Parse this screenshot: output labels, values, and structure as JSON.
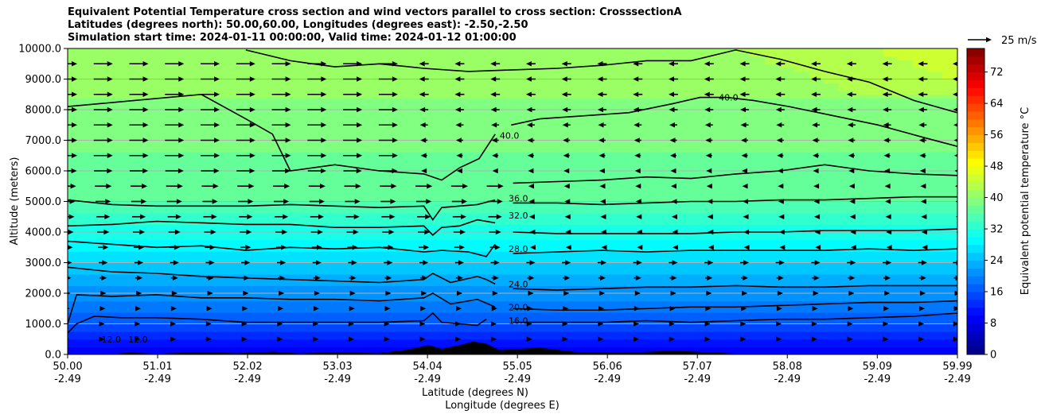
{
  "title": {
    "line1": "Equivalent Potential Temperature cross section and wind vectors parallel to cross section: CrosssectionA",
    "line2": "Latitudes (degrees north): 50.00,60.00, Longitudes (degrees east): -2.50,-2.50",
    "line3": "Simulation start time: 2024-01-11 00:00:00, Valid time: 2024-01-12 01:00:00"
  },
  "quiver_key": "25 m/s",
  "chart_data": {
    "type": "heatmap",
    "xlabel": "Latitude (degrees N)",
    "xlabel2": "Longitude (degrees E)",
    "ylabel": "Altitude (meters)",
    "colorbar_label": "Equivalent potential temperature °C",
    "xlim": [
      50.0,
      59.99
    ],
    "ylim": [
      0,
      10000
    ],
    "grid": "horizontal",
    "x_ticks": [
      {
        "lat": "50.00",
        "lon": "-2.49",
        "value": 50.0
      },
      {
        "lat": "51.01",
        "lon": "-2.49",
        "value": 51.01
      },
      {
        "lat": "52.02",
        "lon": "-2.49",
        "value": 52.02
      },
      {
        "lat": "53.03",
        "lon": "-2.49",
        "value": 53.03
      },
      {
        "lat": "54.04",
        "lon": "-2.49",
        "value": 54.04
      },
      {
        "lat": "55.05",
        "lon": "-2.49",
        "value": 55.05
      },
      {
        "lat": "56.06",
        "lon": "-2.49",
        "value": 56.06
      },
      {
        "lat": "57.07",
        "lon": "-2.49",
        "value": 57.07
      },
      {
        "lat": "58.08",
        "lon": "-2.49",
        "value": 58.08
      },
      {
        "lat": "59.09",
        "lon": "-2.49",
        "value": 59.09
      },
      {
        "lat": "59.99",
        "lon": "-2.49",
        "value": 59.99
      }
    ],
    "y_ticks": [
      "0.0",
      "1000.0",
      "2000.0",
      "3000.0",
      "4000.0",
      "5000.0",
      "6000.0",
      "7000.0",
      "8000.0",
      "9000.0",
      "10000.0"
    ],
    "colorbar_ticks": [
      "0",
      "8",
      "16",
      "24",
      "32",
      "40",
      "48",
      "56",
      "64",
      "72"
    ],
    "colorbar_range": [
      0,
      78
    ],
    "contour_labels": [
      {
        "text": "40.0",
        "x": 54.96,
        "y": 7150
      },
      {
        "text": "40.0",
        "x": 57.42,
        "y": 8400
      },
      {
        "text": "36.0",
        "x": 55.06,
        "y": 5100
      },
      {
        "text": "32.0",
        "x": 55.06,
        "y": 4550
      },
      {
        "text": "28.0",
        "x": 55.06,
        "y": 3450
      },
      {
        "text": "24.0",
        "x": 55.06,
        "y": 2300
      },
      {
        "text": "20.0",
        "x": 55.06,
        "y": 1550
      },
      {
        "text": "16.0",
        "x": 55.06,
        "y": 1100
      },
      {
        "text": "12.0",
        "x": 50.49,
        "y": 500
      },
      {
        "text": "12.0",
        "x": 50.79,
        "y": 500
      }
    ],
    "contour_levels": [
      {
        "level": 40,
        "x": [
          50.0,
          51.5,
          52.0,
          52.3,
          52.5,
          53.0,
          53.5,
          54.0,
          54.2,
          54.4,
          54.62,
          54.8
        ],
        "y": [
          8100,
          8500,
          7700,
          7200,
          6000,
          6200,
          6000,
          5900,
          5700,
          6100,
          6400,
          7200
        ]
      },
      {
        "level": 40,
        "x": [
          54.98,
          55.3,
          55.8,
          56.3,
          56.8,
          57.1,
          57.4,
          57.7,
          58.1,
          58.6,
          59.1,
          59.6,
          59.99
        ],
        "y": [
          7500,
          7700,
          7800,
          7900,
          8200,
          8400,
          8400,
          8300,
          8100,
          7800,
          7500,
          7100,
          6800
        ]
      },
      {
        "level": 38,
        "x": [
          52.0,
          52.5,
          53.0,
          53.5,
          54.0,
          54.5,
          55.0,
          55.5,
          56.0,
          56.5,
          57.0,
          57.5,
          58.0,
          58.5,
          59.0,
          59.5,
          59.99
        ],
        "y": [
          9950,
          9600,
          9400,
          9500,
          9350,
          9250,
          9300,
          9350,
          9450,
          9600,
          9600,
          9950,
          9650,
          9250,
          8900,
          8300,
          7900
        ]
      },
      {
        "level": 38,
        "x": [
          55.0,
          55.5,
          56.0,
          56.5,
          57.0,
          57.5,
          58.0,
          58.5,
          59.0,
          59.5,
          59.99
        ],
        "y": [
          5600,
          5650,
          5700,
          5800,
          5750,
          5900,
          6000,
          6200,
          6000,
          5900,
          5850
        ]
      },
      {
        "level": 36,
        "x": [
          50.0,
          50.5,
          51.0,
          51.5,
          52.0,
          52.5,
          53.0,
          53.5,
          54.0,
          54.1,
          54.2,
          54.4,
          54.6,
          54.8
        ],
        "y": [
          5050,
          4900,
          4850,
          4850,
          4850,
          4900,
          4850,
          4800,
          4850,
          4400,
          4800,
          4850,
          4900,
          5050
        ]
      },
      {
        "level": 36,
        "x": [
          55.0,
          55.5,
          56.0,
          56.5,
          57.0,
          57.5,
          58.0,
          58.5,
          59.0,
          59.5,
          59.99
        ],
        "y": [
          4950,
          4950,
          4900,
          4950,
          5000,
          5000,
          5050,
          5050,
          5100,
          5150,
          5150
        ]
      },
      {
        "level": 32,
        "x": [
          50.0,
          50.5,
          51.0,
          51.5,
          52.0,
          52.5,
          53.0,
          53.5,
          54.0,
          54.1,
          54.2,
          54.4,
          54.6,
          54.8
        ],
        "y": [
          4200,
          4250,
          4350,
          4300,
          4250,
          4250,
          4150,
          4150,
          4200,
          3900,
          4150,
          4200,
          4400,
          4300
        ]
      },
      {
        "level": 32,
        "x": [
          55.0,
          55.5,
          56.0,
          56.5,
          57.0,
          57.5,
          58.0,
          58.5,
          59.0,
          59.5,
          59.99
        ],
        "y": [
          4000,
          3950,
          3950,
          3950,
          3950,
          4000,
          4000,
          4050,
          4050,
          4050,
          4100
        ]
      },
      {
        "level": 28,
        "x": [
          50.0,
          50.5,
          51.0,
          51.5,
          52.0,
          52.5,
          53.0,
          53.5,
          54.0,
          54.2,
          54.5,
          54.7,
          54.8
        ],
        "y": [
          3700,
          3600,
          3500,
          3550,
          3400,
          3500,
          3450,
          3500,
          3350,
          3400,
          3350,
          3200,
          3600
        ]
      },
      {
        "level": 28,
        "x": [
          55.0,
          55.5,
          56.0,
          56.5,
          57.0,
          57.5,
          58.0,
          58.5,
          59.0,
          59.5,
          59.99
        ],
        "y": [
          3300,
          3350,
          3400,
          3350,
          3400,
          3400,
          3400,
          3400,
          3450,
          3400,
          3450
        ]
      },
      {
        "level": 24,
        "x": [
          50.0,
          50.5,
          51.0,
          51.5,
          52.0,
          52.5,
          53.0,
          53.5,
          54.0,
          54.1,
          54.3,
          54.6,
          54.7,
          54.8
        ],
        "y": [
          2850,
          2700,
          2650,
          2550,
          2500,
          2450,
          2400,
          2350,
          2450,
          2650,
          2350,
          2550,
          2450,
          2300
        ]
      },
      {
        "level": 24,
        "x": [
          55.0,
          55.5,
          56.0,
          56.5,
          57.0,
          57.5,
          58.0,
          58.5,
          59.0,
          59.5,
          59.99
        ],
        "y": [
          2150,
          2100,
          2150,
          2200,
          2200,
          2250,
          2200,
          2200,
          2250,
          2250,
          2250
        ]
      },
      {
        "level": 20,
        "x": [
          50.0,
          50.1,
          50.5,
          51.0,
          51.5,
          52.0,
          52.5,
          53.0,
          53.5,
          54.0,
          54.1,
          54.3,
          54.6,
          54.8
        ],
        "y": [
          1000,
          1950,
          1900,
          1950,
          1850,
          1850,
          1800,
          1800,
          1750,
          1850,
          2000,
          1650,
          1800,
          1550
        ]
      },
      {
        "level": 20,
        "x": [
          55.0,
          55.5,
          56.0,
          56.5,
          57.0,
          57.5,
          58.0,
          58.5,
          59.0,
          59.5,
          59.99
        ],
        "y": [
          1500,
          1450,
          1450,
          1500,
          1550,
          1550,
          1600,
          1650,
          1700,
          1700,
          1750
        ]
      },
      {
        "level": 16,
        "x": [
          50.0,
          50.1,
          50.3,
          50.6,
          51.0,
          51.5,
          52.0,
          52.5,
          53.0,
          53.5,
          54.0,
          54.1,
          54.2,
          54.6,
          54.7
        ],
        "y": [
          700,
          1000,
          1250,
          1200,
          1200,
          1150,
          1050,
          1050,
          1050,
          1050,
          1100,
          1350,
          1050,
          950,
          1150
        ]
      },
      {
        "level": 16,
        "x": [
          55.0,
          55.5,
          56.0,
          56.5,
          57.0,
          57.5,
          58.0,
          58.5,
          59.0,
          59.5,
          59.99
        ],
        "y": [
          1050,
          1050,
          1050,
          1100,
          1050,
          1100,
          1150,
          1150,
          1200,
          1250,
          1350
        ]
      }
    ],
    "wind_vectors": {
      "levels_m": [
        500,
        1000,
        1500,
        2000,
        2500,
        3000,
        3500,
        4000,
        4500,
        5000,
        5500,
        6000,
        6500,
        7000,
        7500,
        8000,
        8500,
        9000,
        9500
      ],
      "lat": [
        50.0,
        50.4,
        50.8,
        51.2,
        51.6,
        52.0,
        52.4,
        52.8,
        53.2,
        53.6,
        54.0,
        54.4,
        54.8,
        55.2,
        55.6,
        56.0,
        56.4,
        56.8,
        57.2,
        57.6,
        58.0,
        58.4,
        58.8,
        59.2,
        59.6,
        59.99
      ],
      "u_westerly_sector_ms": 20,
      "u_easterly_sector_ms": -10,
      "reference_ms": 25
    }
  }
}
